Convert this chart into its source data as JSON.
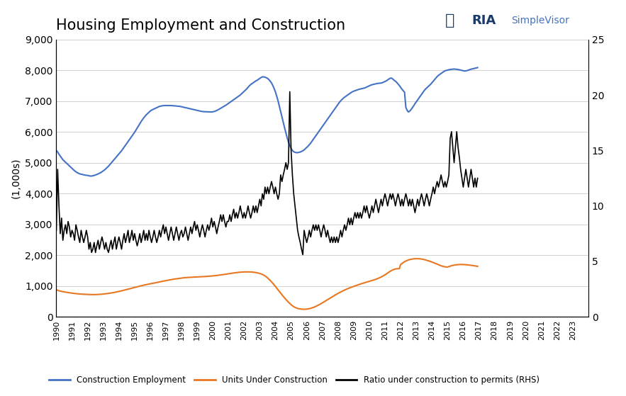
{
  "title": "Housing Employment and Construction",
  "ylabel_left": "(1,000s)",
  "ylim_left": [
    0,
    9000
  ],
  "ylim_right": [
    0,
    25
  ],
  "yticks_left": [
    0,
    1000,
    2000,
    3000,
    4000,
    5000,
    6000,
    7000,
    8000,
    9000
  ],
  "yticks_right": [
    0,
    5,
    10,
    15,
    20,
    25
  ],
  "background_color": "#ffffff",
  "grid_color": "#d0d0d0",
  "line_blue_color": "#4472c4",
  "line_orange_color": "#e87722",
  "line_black_color": "#000000",
  "legend_labels": [
    "Construction Employment",
    "Units Under Construction",
    "Ratio under construction to permits (RHS)"
  ],
  "start_year": 1990,
  "construction_employment": [
    5400,
    5350,
    5280,
    5220,
    5160,
    5100,
    5060,
    5020,
    4980,
    4940,
    4900,
    4860,
    4820,
    4780,
    4740,
    4710,
    4680,
    4660,
    4640,
    4630,
    4620,
    4610,
    4600,
    4595,
    4590,
    4580,
    4570,
    4570,
    4580,
    4590,
    4605,
    4620,
    4640,
    4660,
    4680,
    4710,
    4740,
    4770,
    4810,
    4850,
    4890,
    4940,
    4990,
    5040,
    5090,
    5140,
    5190,
    5240,
    5290,
    5340,
    5390,
    5450,
    5510,
    5570,
    5630,
    5690,
    5750,
    5810,
    5870,
    5930,
    5990,
    6060,
    6130,
    6200,
    6270,
    6340,
    6400,
    6460,
    6510,
    6560,
    6600,
    6640,
    6680,
    6710,
    6730,
    6750,
    6770,
    6790,
    6810,
    6830,
    6840,
    6850,
    6855,
    6860,
    6860,
    6860,
    6860,
    6860,
    6858,
    6856,
    6852,
    6848,
    6844,
    6840,
    6836,
    6830,
    6820,
    6810,
    6800,
    6790,
    6780,
    6770,
    6760,
    6750,
    6740,
    6730,
    6720,
    6710,
    6700,
    6690,
    6680,
    6672,
    6665,
    6660,
    6658,
    6655,
    6652,
    6650,
    6650,
    6650,
    6655,
    6665,
    6680,
    6700,
    6720,
    6745,
    6770,
    6795,
    6820,
    6845,
    6870,
    6900,
    6930,
    6960,
    6990,
    7020,
    7050,
    7080,
    7110,
    7140,
    7170,
    7200,
    7240,
    7280,
    7320,
    7360,
    7400,
    7450,
    7500,
    7540,
    7570,
    7600,
    7630,
    7660,
    7680,
    7710,
    7740,
    7770,
    7790,
    7790,
    7780,
    7760,
    7740,
    7700,
    7650,
    7590,
    7510,
    7410,
    7300,
    7160,
    7010,
    6840,
    6670,
    6490,
    6310,
    6140,
    5970,
    5810,
    5670,
    5560,
    5470,
    5400,
    5360,
    5340,
    5330,
    5330,
    5340,
    5350,
    5370,
    5390,
    5420,
    5460,
    5500,
    5540,
    5590,
    5640,
    5700,
    5760,
    5820,
    5880,
    5940,
    6000,
    6060,
    6120,
    6180,
    6240,
    6300,
    6360,
    6420,
    6480,
    6540,
    6600,
    6660,
    6720,
    6780,
    6840,
    6900,
    6960,
    7010,
    7055,
    7095,
    7130,
    7160,
    7190,
    7220,
    7250,
    7280,
    7305,
    7325,
    7340,
    7355,
    7370,
    7385,
    7395,
    7405,
    7415,
    7425,
    7440,
    7460,
    7480,
    7500,
    7520,
    7535,
    7545,
    7555,
    7565,
    7575,
    7580,
    7585,
    7590,
    7600,
    7620,
    7640,
    7660,
    7690,
    7720,
    7745,
    7750,
    7720,
    7680,
    7650,
    7610,
    7560,
    7510,
    7450,
    7390,
    7340,
    7290,
    6800,
    6700,
    6650,
    6680,
    6730,
    6790,
    6850,
    6920,
    6980,
    7040,
    7100,
    7160,
    7220,
    7280,
    7340,
    7390,
    7430,
    7470,
    7510,
    7550,
    7600,
    7650,
    7700,
    7750,
    7800,
    7840,
    7870,
    7900,
    7930,
    7960,
    7985,
    8000,
    8010,
    8020,
    8030,
    8035,
    8040,
    8045,
    8040,
    8035,
    8030,
    8020,
    8010,
    8000,
    7990,
    7980,
    7985,
    7995,
    8010,
    8025,
    8040,
    8050,
    8060,
    8070,
    8080,
    8090
  ],
  "units_under_construction": [
    880,
    860,
    845,
    835,
    825,
    815,
    808,
    800,
    793,
    786,
    780,
    774,
    768,
    762,
    756,
    752,
    748,
    744,
    740,
    737,
    734,
    732,
    730,
    728,
    726,
    724,
    722,
    721,
    720,
    720,
    721,
    723,
    725,
    728,
    731,
    735,
    739,
    744,
    749,
    754,
    760,
    766,
    773,
    780,
    788,
    796,
    805,
    814,
    823,
    833,
    843,
    854,
    865,
    876,
    887,
    898,
    909,
    920,
    931,
    942,
    953,
    964,
    975,
    986,
    997,
    1008,
    1018,
    1028,
    1037,
    1046,
    1055,
    1063,
    1071,
    1079,
    1087,
    1096,
    1105,
    1114,
    1123,
    1132,
    1141,
    1150,
    1159,
    1167,
    1175,
    1183,
    1191,
    1199,
    1207,
    1215,
    1222,
    1228,
    1234,
    1240,
    1246,
    1252,
    1258,
    1263,
    1268,
    1272,
    1275,
    1278,
    1281,
    1284,
    1286,
    1288,
    1290,
    1292,
    1294,
    1296,
    1298,
    1300,
    1302,
    1305,
    1308,
    1311,
    1314,
    1317,
    1320,
    1324,
    1328,
    1332,
    1337,
    1342,
    1347,
    1353,
    1359,
    1365,
    1371,
    1377,
    1383,
    1389,
    1396,
    1403,
    1410,
    1417,
    1424,
    1430,
    1435,
    1440,
    1445,
    1449,
    1452,
    1454,
    1456,
    1457,
    1458,
    1458,
    1457,
    1455,
    1452,
    1448,
    1443,
    1437,
    1429,
    1419,
    1407,
    1393,
    1375,
    1353,
    1327,
    1296,
    1261,
    1222,
    1180,
    1135,
    1087,
    1037,
    984,
    930,
    876,
    822,
    768,
    715,
    663,
    613,
    564,
    517,
    473,
    432,
    394,
    360,
    330,
    306,
    287,
    272,
    261,
    254,
    249,
    246,
    245,
    246,
    250,
    257,
    265,
    275,
    288,
    303,
    320,
    339,
    359,
    381,
    404,
    428,
    453,
    479,
    505,
    531,
    557,
    583,
    609,
    635,
    661,
    687,
    712,
    736,
    760,
    783,
    805,
    827,
    848,
    868,
    887,
    906,
    924,
    941,
    957,
    973,
    988,
    1003,
    1018,
    1033,
    1047,
    1061,
    1075,
    1089,
    1102,
    1115,
    1128,
    1140,
    1152,
    1164,
    1177,
    1190,
    1204,
    1219,
    1235,
    1252,
    1271,
    1291,
    1313,
    1337,
    1363,
    1391,
    1420,
    1450,
    1478,
    1503,
    1524,
    1540,
    1552,
    1560,
    1563,
    1563,
    1700,
    1730,
    1760,
    1790,
    1810,
    1830,
    1845,
    1858,
    1868,
    1876,
    1882,
    1886,
    1888,
    1888,
    1886,
    1882,
    1876,
    1868,
    1858,
    1847,
    1835,
    1822,
    1808,
    1793,
    1778,
    1762,
    1745,
    1728,
    1710,
    1692,
    1674,
    1656,
    1643,
    1632,
    1623,
    1615,
    1618,
    1630,
    1645,
    1660,
    1670,
    1678,
    1685,
    1690,
    1694,
    1697,
    1698,
    1698,
    1697,
    1695,
    1692,
    1688,
    1683,
    1677,
    1672,
    1666,
    1660,
    1653,
    1646,
    1638
  ],
  "ratio_rhs": [
    7.8,
    13.3,
    10.0,
    7.5,
    8.9,
    6.9,
    7.8,
    8.3,
    7.5,
    8.6,
    8.1,
    7.2,
    7.8,
    7.5,
    6.9,
    8.3,
    7.8,
    7.2,
    6.7,
    7.8,
    7.2,
    6.7,
    7.2,
    7.8,
    7.2,
    6.1,
    6.7,
    5.8,
    6.1,
    6.7,
    5.8,
    6.4,
    6.9,
    6.1,
    6.7,
    7.2,
    6.7,
    6.1,
    6.7,
    6.1,
    5.8,
    6.4,
    6.9,
    6.1,
    6.7,
    7.2,
    6.1,
    6.7,
    7.2,
    6.7,
    6.1,
    6.9,
    7.5,
    6.7,
    7.2,
    7.8,
    6.7,
    7.2,
    7.8,
    6.9,
    7.5,
    6.9,
    6.4,
    6.9,
    7.5,
    6.7,
    7.2,
    7.8,
    6.9,
    7.5,
    6.9,
    7.8,
    7.2,
    6.7,
    7.2,
    7.8,
    7.2,
    6.7,
    7.2,
    7.8,
    7.2,
    7.8,
    8.3,
    7.5,
    8.1,
    7.5,
    6.9,
    7.5,
    8.1,
    7.5,
    6.9,
    7.5,
    8.1,
    7.5,
    6.9,
    7.5,
    7.8,
    7.2,
    7.5,
    8.1,
    7.5,
    6.9,
    7.5,
    8.1,
    7.5,
    8.1,
    8.6,
    7.8,
    8.3,
    7.8,
    7.2,
    7.8,
    8.3,
    7.8,
    7.2,
    7.8,
    8.3,
    7.8,
    8.3,
    8.9,
    8.1,
    8.6,
    8.1,
    7.5,
    8.1,
    8.6,
    9.2,
    8.6,
    9.2,
    8.6,
    8.1,
    8.6,
    8.6,
    9.2,
    8.6,
    9.2,
    9.7,
    8.9,
    9.4,
    8.9,
    9.4,
    10.0,
    9.4,
    8.9,
    9.4,
    8.9,
    9.4,
    10.0,
    9.4,
    8.9,
    9.4,
    10.0,
    9.4,
    10.0,
    9.4,
    10.0,
    10.6,
    10.0,
    11.1,
    10.6,
    11.7,
    11.1,
    11.7,
    11.1,
    11.7,
    12.2,
    11.7,
    11.1,
    11.7,
    11.1,
    10.6,
    11.1,
    12.8,
    12.2,
    12.8,
    13.3,
    13.9,
    13.3,
    13.9,
    20.3,
    15.0,
    12.8,
    11.1,
    10.0,
    8.9,
    7.8,
    7.2,
    6.7,
    6.1,
    5.6,
    7.8,
    7.2,
    6.7,
    7.2,
    7.8,
    7.2,
    7.8,
    8.3,
    7.8,
    8.3,
    7.8,
    8.3,
    7.8,
    7.2,
    7.8,
    8.3,
    7.8,
    7.2,
    7.8,
    7.2,
    6.7,
    7.2,
    6.7,
    7.2,
    6.7,
    7.2,
    6.7,
    7.2,
    7.8,
    7.2,
    7.8,
    8.3,
    7.8,
    8.3,
    8.9,
    8.3,
    8.9,
    8.3,
    8.9,
    9.4,
    8.9,
    9.4,
    8.9,
    9.4,
    8.9,
    9.4,
    10.0,
    9.4,
    10.0,
    9.4,
    8.9,
    9.4,
    10.0,
    9.4,
    10.0,
    10.6,
    10.0,
    9.4,
    10.0,
    10.6,
    10.0,
    10.6,
    11.1,
    10.6,
    10.0,
    10.6,
    11.1,
    10.6,
    11.1,
    10.6,
    10.0,
    10.6,
    11.1,
    10.6,
    10.0,
    10.6,
    10.0,
    10.6,
    11.1,
    10.6,
    10.0,
    10.6,
    10.0,
    10.6,
    10.0,
    9.4,
    10.0,
    10.6,
    10.0,
    10.6,
    11.1,
    10.6,
    10.0,
    10.6,
    11.1,
    10.6,
    10.0,
    10.6,
    11.1,
    11.7,
    11.1,
    11.7,
    12.2,
    11.7,
    12.2,
    12.8,
    12.2,
    11.7,
    12.2,
    11.7,
    12.2,
    12.8,
    16.1,
    16.7,
    15.3,
    13.9,
    15.3,
    16.7,
    15.3,
    14.4,
    13.3,
    12.5,
    11.7,
    12.5,
    13.3,
    12.5,
    11.7,
    12.5,
    13.3,
    12.5,
    11.7,
    12.5,
    11.7,
    12.5
  ]
}
